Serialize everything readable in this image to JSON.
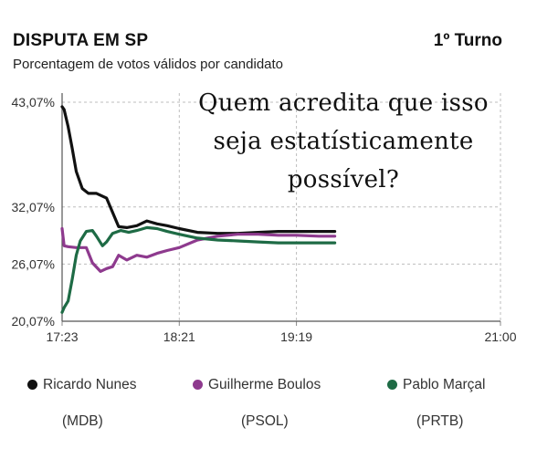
{
  "header": {
    "title": "DISPUTA EM SP",
    "round": "1º Turno",
    "subtitle": "Porcentagem de votos válidos por candidato"
  },
  "overlay_caption": [
    "Quem acredita que isso",
    "seja estatísticamente",
    "possível?"
  ],
  "legend": [
    {
      "name": "Ricardo Nunes",
      "party": "(MDB)",
      "color": "#111111"
    },
    {
      "name": "Guilherme Boulos",
      "party": "(PSOL)",
      "color": "#8e3a8e"
    },
    {
      "name": "Pablo Marçal",
      "party": "(PRTB)",
      "color": "#1e6b45"
    }
  ],
  "chart_data": {
    "type": "line",
    "x_ticks": [
      "17:23",
      "18:21",
      "19:19",
      "21:00"
    ],
    "y_ticks": [
      "43,07%",
      "32,07%",
      "26,07%",
      "20,07%"
    ],
    "ylim": [
      20.07,
      43.07
    ],
    "grid": true,
    "series": [
      {
        "name": "Ricardo Nunes",
        "color": "#111111",
        "x": [
          "17:23",
          "17:24",
          "17:26",
          "17:28",
          "17:30",
          "17:33",
          "17:36",
          "17:40",
          "17:45",
          "17:48",
          "17:51",
          "17:55",
          "18:00",
          "18:05",
          "18:10",
          "18:15",
          "18:21",
          "18:30",
          "18:40",
          "18:50",
          "19:00",
          "19:10",
          "19:19",
          "19:30",
          "19:38"
        ],
        "y": [
          42.6,
          42.3,
          40.5,
          38.2,
          35.8,
          34.0,
          33.5,
          33.5,
          33.0,
          31.5,
          30.0,
          29.9,
          30.1,
          30.6,
          30.3,
          30.1,
          29.8,
          29.4,
          29.3,
          29.3,
          29.4,
          29.5,
          29.5,
          29.5,
          29.5
        ]
      },
      {
        "name": "Guilherme Boulos",
        "color": "#8e3a8e",
        "x": [
          "17:23",
          "17:24",
          "17:26",
          "17:30",
          "17:35",
          "17:38",
          "17:42",
          "17:45",
          "17:48",
          "17:51",
          "17:55",
          "18:00",
          "18:05",
          "18:10",
          "18:15",
          "18:21",
          "18:30",
          "18:40",
          "18:50",
          "19:00",
          "19:10",
          "19:19",
          "19:30",
          "19:38"
        ],
        "y": [
          29.8,
          28.0,
          27.9,
          27.8,
          27.8,
          26.2,
          25.3,
          25.6,
          25.8,
          27.0,
          26.5,
          27.0,
          26.8,
          27.2,
          27.5,
          27.8,
          28.6,
          29.0,
          29.2,
          29.2,
          29.1,
          29.1,
          29.0,
          29.0
        ]
      },
      {
        "name": "Pablo Marçal",
        "color": "#1e6b45",
        "x": [
          "17:23",
          "17:24",
          "17:26",
          "17:28",
          "17:30",
          "17:32",
          "17:35",
          "17:38",
          "17:40",
          "17:43",
          "17:45",
          "17:48",
          "17:52",
          "17:56",
          "18:00",
          "18:05",
          "18:10",
          "18:15",
          "18:21",
          "18:30",
          "18:40",
          "18:50",
          "19:00",
          "19:10",
          "19:19",
          "19:30",
          "19:38"
        ],
        "y": [
          21.0,
          21.5,
          22.2,
          24.5,
          27.0,
          28.5,
          29.5,
          29.6,
          29.0,
          28.0,
          28.4,
          29.3,
          29.6,
          29.4,
          29.6,
          29.9,
          29.8,
          29.5,
          29.2,
          28.8,
          28.6,
          28.5,
          28.4,
          28.3,
          28.3,
          28.3,
          28.3
        ]
      }
    ]
  }
}
